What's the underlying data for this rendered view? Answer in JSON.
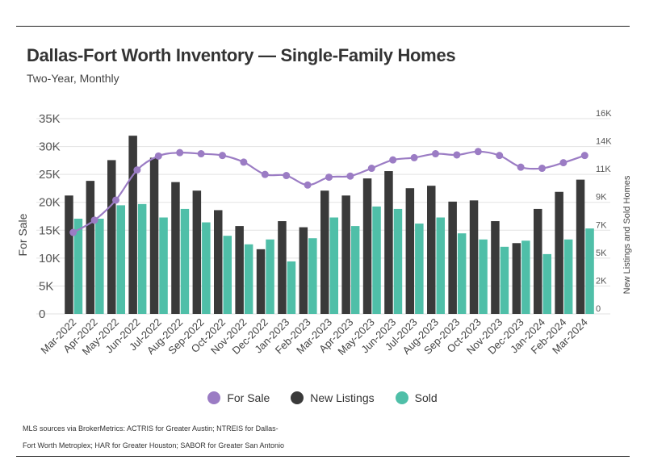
{
  "title": "Dallas-Fort Worth Inventory — Single-Family Homes",
  "subtitle": "Two-Year, Monthly",
  "source": "MLS sources via BrokerMetrics: ACTRIS for Greater Austin; NTREIS for Dallas-Fort Worth Metroplex; HAR for Greater Houston; SABOR for Greater San Antonio",
  "colors": {
    "for_sale": "#9b7cc4",
    "new_listings": "#3a3a3a",
    "sold": "#4fbfa8"
  },
  "chart_data": {
    "type": "bar",
    "ylabel_left": "For Sale",
    "ylabel_right": "New Listings and Sold Homes",
    "left_ticks": [
      "0",
      "5K",
      "10K",
      "15K",
      "20K",
      "25K",
      "30K",
      "35K"
    ],
    "right_ticks": [
      "0",
      "2K",
      "5K",
      "7K",
      "9K",
      "11K",
      "14K",
      "16K"
    ],
    "ylim_left": [
      0,
      35000
    ],
    "ylim_right": [
      0,
      16000
    ],
    "categories": [
      "Mar-2022",
      "Apr-2022",
      "May-2022",
      "Jun-2022",
      "Jul-2022",
      "Aug-2022",
      "Sep-2022",
      "Oct-2022",
      "Nov-2022",
      "Dec-2022",
      "Jan-2023",
      "Feb-2023",
      "Mar-2023",
      "Apr-2023",
      "May-2023",
      "Jun-2023",
      "Jul-2023",
      "Aug-2023",
      "Sep-2023",
      "Oct-2023",
      "Nov-2023",
      "Dec-2023",
      "Jan-2024",
      "Feb-2024",
      "Mar-2024"
    ],
    "series": [
      {
        "name": "For Sale",
        "type": "line",
        "axis": "left",
        "values": [
          14600,
          16800,
          20400,
          25800,
          28300,
          28900,
          28700,
          28400,
          27200,
          25000,
          24800,
          23100,
          24500,
          24700,
          26100,
          27600,
          28000,
          28700,
          28500,
          29100,
          28400,
          26300,
          26100,
          27100,
          28400
        ]
      },
      {
        "name": "New Listings",
        "type": "bar",
        "axis": "right",
        "values": [
          9700,
          10900,
          12600,
          14600,
          12800,
          10800,
          10100,
          8500,
          7200,
          5300,
          7600,
          7100,
          10100,
          9700,
          11100,
          11700,
          10300,
          10500,
          9200,
          9300,
          7600,
          5800,
          8600,
          10000,
          11000
        ]
      },
      {
        "name": "Sold",
        "type": "bar",
        "axis": "right",
        "values": [
          7800,
          7800,
          8900,
          9000,
          7900,
          8600,
          7500,
          6400,
          5700,
          6100,
          4300,
          6200,
          7900,
          7200,
          8800,
          8600,
          7400,
          7900,
          6600,
          6100,
          5500,
          6000,
          4900,
          6100,
          7000
        ]
      }
    ],
    "legend_position": "bottom",
    "grid": true
  }
}
